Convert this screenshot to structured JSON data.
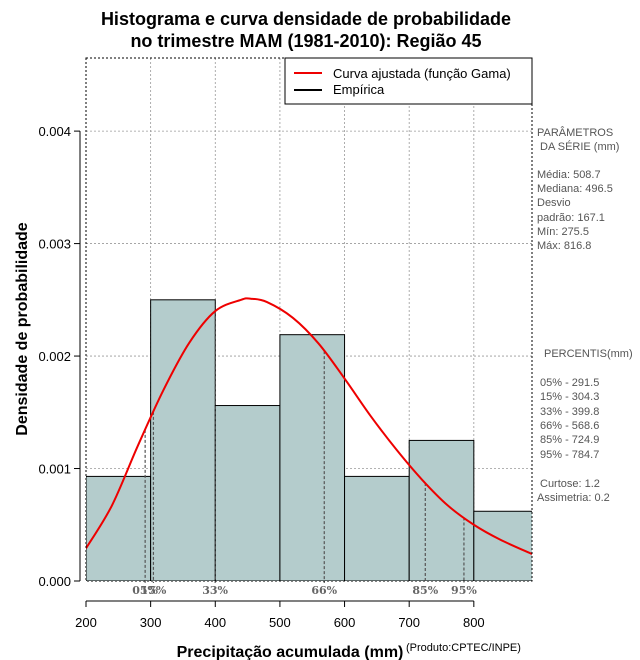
{
  "chart_data": {
    "type": "bar",
    "title_line1": "Histograma e curva densidade de probabilidade",
    "title_line2": "no trimestre MAM (1981-2010): Região 45",
    "xlabel": "Precipitação acumulada (mm)",
    "ylabel": "Densidade de probabilidade",
    "credit": "(Produto:CPTEC/INPE)",
    "xlim": [
      200,
      890
    ],
    "ylim": [
      0,
      0.00465
    ],
    "x_ticks": [
      200,
      300,
      400,
      500,
      600,
      700,
      800
    ],
    "y_ticks": [
      0,
      0.001,
      0.002,
      0.003,
      0.004
    ],
    "y_tick_labels": [
      "0.000",
      "0.001",
      "0.002",
      "0.003",
      "0.004"
    ],
    "bins": [
      {
        "start": 200,
        "end": 300,
        "density": 0.00093
      },
      {
        "start": 300,
        "end": 400,
        "density": 0.0025
      },
      {
        "start": 400,
        "end": 500,
        "density": 0.00156
      },
      {
        "start": 500,
        "end": 600,
        "density": 0.00219
      },
      {
        "start": 600,
        "end": 700,
        "density": 0.00093
      },
      {
        "start": 700,
        "end": 800,
        "density": 0.00125
      },
      {
        "start": 800,
        "end": 900,
        "density": 0.00062
      }
    ],
    "curve": {
      "name": "Curva ajustada (função Gama)",
      "color": "#ee0000",
      "x": [
        200,
        240,
        280,
        320,
        360,
        400,
        440,
        455,
        480,
        520,
        560,
        600,
        640,
        680,
        720,
        760,
        800,
        840,
        890
      ],
      "y": [
        0.00029,
        0.00067,
        0.0012,
        0.0017,
        0.00212,
        0.0024,
        0.0025,
        0.00251,
        0.00248,
        0.00234,
        0.00211,
        0.0018,
        0.00147,
        0.00117,
        0.0009,
        0.00067,
        0.0005,
        0.00037,
        0.00024
      ]
    },
    "empirical_label": "Empírica",
    "percentiles": [
      {
        "label": "05%",
        "value": 291.5
      },
      {
        "label": "15%",
        "value": 304.3
      },
      {
        "label": "33%",
        "value": 399.8
      },
      {
        "label": "66%",
        "value": 568.6
      },
      {
        "label": "85%",
        "value": 724.9
      },
      {
        "label": "95%",
        "value": 784.7
      }
    ],
    "colors": {
      "bar_fill": "#b4cccc",
      "bar_stroke": "#000000",
      "curve": "#ee0000",
      "grid": "#999999",
      "percentile_line": "#555555"
    }
  },
  "side_panel": {
    "params_title1": "PARÂMETROS",
    "params_title2": "DA SÉRIE (mm)",
    "media": "Média:  508.7",
    "mediana": "Mediana:  496.5",
    "desvio1": "Desvio",
    "desvio2": "padrão:  167.1",
    "min": "Mín:  275.5",
    "max": "Máx:  816.8",
    "pct_title": "PERCENTIS(mm)",
    "pct_lines": [
      "05% -  291.5",
      "15% -  304.3",
      "33% -  399.8",
      "66% -  568.6",
      "85% -  724.9",
      "95% -  784.7"
    ],
    "curtose": "Curtose:  1.2",
    "assimetria": "Assimetria:  0.2"
  }
}
